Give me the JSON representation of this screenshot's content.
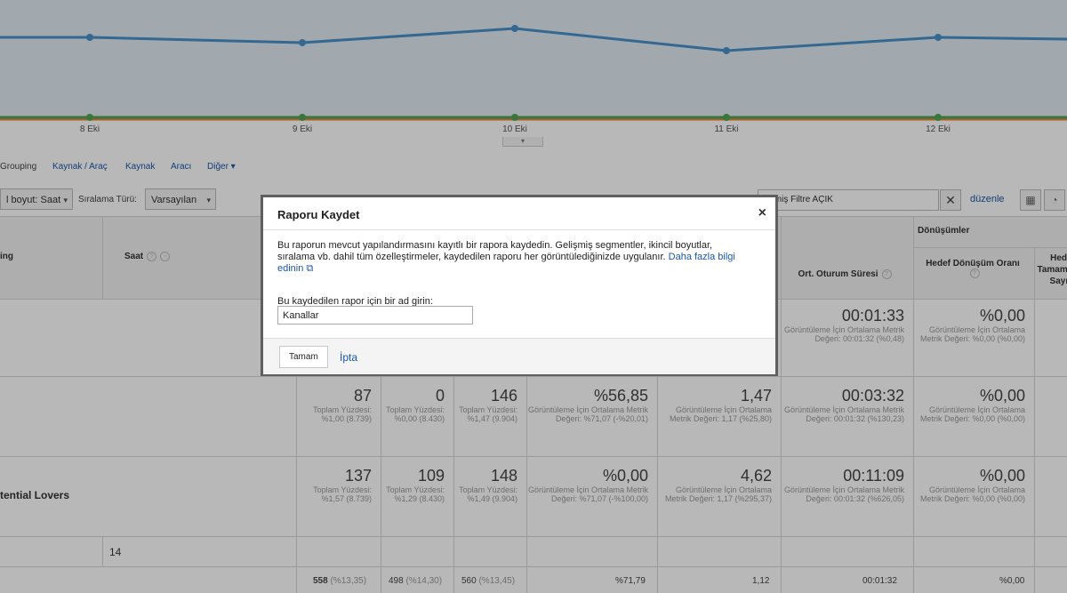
{
  "chart": {
    "x_labels": [
      "8 Eki",
      "9 Eki",
      "10 Eki",
      "11 Eki",
      "12 Eki"
    ],
    "toggle": "▾",
    "colors": {
      "primary": "#4a90c8",
      "secondary": "#51a351",
      "tertiary": "#e8833a"
    }
  },
  "tabs": {
    "grouping": "Grouping",
    "kaynak_arac": "Kaynak / Araç",
    "kaynak": "Kaynak",
    "arac": "Aracı",
    "diger": "Diğer ▾"
  },
  "controls": {
    "secondary_dim": "l boyut: Saat",
    "sort_label": "Sıralama Türü:",
    "sort_value": "Varsayılan",
    "filter_value": "ışmiş Filtre AÇIK",
    "edit": "düzenle"
  },
  "table": {
    "headers": {
      "grouping": "ing",
      "saat": "Saat",
      "conversions": "Dönüşümler",
      "avg_session": "Ort. Oturum Süresi",
      "goal_rate": "Hedef Dönüşüm Oranı",
      "goal_count": "Hedef Tamamlama Sayısı"
    },
    "rows": [
      {
        "label": "",
        "cells": [
          {
            "v": "00:01:33",
            "s": "Görüntüleme İçin Ortalama Metrik Değeri: 00:01:32 (%0,48)"
          },
          {
            "v": "%0,00",
            "s": "Görüntüleme İçin Ortalama Metrik Değeri: %0,00 (%0,00)"
          }
        ]
      },
      {
        "label": "",
        "cells": [
          {
            "v": "87",
            "s": "Toplam Yüzdesi: %1,00 (8.739)"
          },
          {
            "v": "0",
            "s": "Toplam Yüzdesi: %0,00 (8.430)"
          },
          {
            "v": "146",
            "s": "Toplam Yüzdesi: %1,47 (9.904)"
          },
          {
            "v": "%56,85",
            "s": "Görüntüleme İçin Ortalama Metrik Değeri: %71,07 (-%20,01)"
          },
          {
            "v": "1,47",
            "s": "Görüntüleme İçin Ortalama Metrik Değeri: 1,17 (%25,80)"
          },
          {
            "v": "00:03:32",
            "s": "Görüntüleme İçin Ortalama Metrik Değeri: 00:01:32 (%130,23)"
          },
          {
            "v": "%0,00",
            "s": "Görüntüleme İçin Ortalama Metrik Değeri: %0,00 (%0,00)"
          }
        ]
      },
      {
        "label": "tential Lovers",
        "cells": [
          {
            "v": "137",
            "s": "Toplam Yüzdesi: %1,57 (8.739)"
          },
          {
            "v": "109",
            "s": "Toplam Yüzdesi: %1,29 (8.430)"
          },
          {
            "v": "148",
            "s": "Toplam Yüzdesi: %1,49 (9.904)"
          },
          {
            "v": "%0,00",
            "s": "Görüntüleme İçin Ortalama Metrik Değeri: %71,07 (-%100,00)"
          },
          {
            "v": "4,62",
            "s": "Görüntüleme İçin Ortalama Metrik Değeri: 1,17 (%295,37)"
          },
          {
            "v": "00:11:09",
            "s": "Görüntüleme İçin Ortalama Metrik Değeri: 00:01:32 (%626,05)"
          },
          {
            "v": "%0,00",
            "s": "Görüntüleme İçin Ortalama Metrik Değeri: %0,00 (%0,00)"
          }
        ]
      }
    ],
    "hour_row_value": "14",
    "totals": {
      "sessions": "558",
      "sessions_pct": "(%13,35)",
      "new_users": "498",
      "new_users_pct": "(%14,30)",
      "pageviews": "560",
      "pageviews_pct": "(%13,45)",
      "bounce": "%71,79",
      "pages": "1,12",
      "duration": "00:01:32",
      "goal_rate": "%0,00"
    }
  },
  "modal": {
    "title": "Raporu Kaydet",
    "close": "×",
    "description": "Bu raporun mevcut yapılandırmasını kayıtlı bir rapora kaydedin. Gelişmiş segmentler, ikincil boyutlar, sıralama vb. dahil tüm özelleştirmeler, kaydedilen raporu her görüntülediğinizde uygulanır.",
    "learn_more": "Daha fazla bilgi edinin",
    "name_label": "Bu kaydedilen rapor için bir ad girin:",
    "name_value": "Kanallar",
    "ok": "Tamam",
    "cancel": "İpta"
  }
}
